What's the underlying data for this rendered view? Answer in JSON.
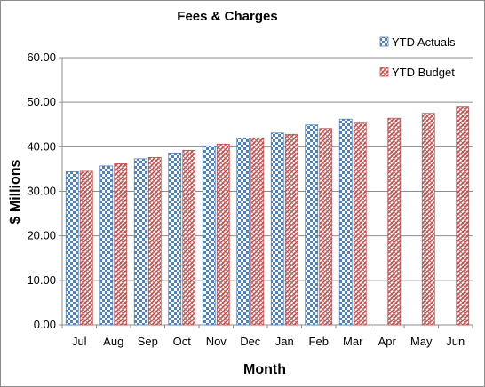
{
  "chart_data": {
    "type": "bar",
    "title": "Fees & Charges",
    "xlabel": "Month",
    "ylabel": "$ Millions",
    "categories": [
      "Jul",
      "Aug",
      "Sep",
      "Oct",
      "Nov",
      "Dec",
      "Jan",
      "Feb",
      "Mar",
      "Apr",
      "May",
      "Jun"
    ],
    "series": [
      {
        "name": "YTD Actuals",
        "values": [
          34.4,
          35.7,
          37.3,
          38.6,
          40.2,
          41.9,
          43.1,
          44.9,
          46.2,
          null,
          null,
          null
        ],
        "color": "#4f81bd",
        "pattern": "checkerboard"
      },
      {
        "name": "YTD Budget",
        "values": [
          34.5,
          36.2,
          37.6,
          39.2,
          40.6,
          42.0,
          42.8,
          44.1,
          45.3,
          46.4,
          47.5,
          49.1
        ],
        "color": "#c0504d",
        "pattern": "diagonal-weave"
      }
    ],
    "ylim": [
      0,
      60
    ],
    "yticks": [
      "0.00",
      "10.00",
      "20.00",
      "30.00",
      "40.00",
      "50.00",
      "60.00"
    ],
    "ytick_values": [
      0,
      10,
      20,
      30,
      40,
      50,
      60
    ],
    "grid": true,
    "legend_position": "top-right"
  }
}
